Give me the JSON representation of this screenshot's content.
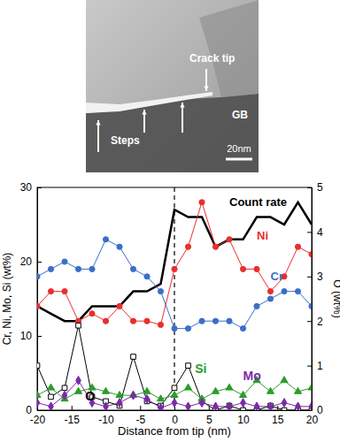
{
  "micrograph": {
    "labels": [
      "Crack tip",
      "GB",
      "Steps"
    ],
    "scale_bar": "20nm"
  },
  "chart_data": {
    "type": "line",
    "x_label": "Distance from tip (nm)",
    "y_label": "Cr, Ni, Mo, Si (wt%)",
    "y2_label": "O (wt%)",
    "x": [
      -20,
      -18,
      -16,
      -14,
      -12,
      -10,
      -8,
      -6,
      -4,
      -2,
      0,
      2,
      4,
      6,
      8,
      10,
      12,
      14,
      16,
      18,
      20
    ],
    "xlim": [
      -20,
      20
    ],
    "xticks": [
      -20,
      -15,
      -10,
      -5,
      0,
      5,
      10,
      15,
      20
    ],
    "ylim": [
      0,
      30
    ],
    "yticks": [
      0,
      10,
      20,
      30
    ],
    "y2lim": [
      0,
      5
    ],
    "y2ticks": [
      0,
      1,
      2,
      3,
      4,
      5
    ],
    "reference_lines": [
      {
        "x": 0,
        "line_style": "dashed"
      }
    ],
    "series": [
      {
        "name": "Count rate",
        "color": "#000000",
        "marker": "none",
        "line_style": "thick",
        "values": [
          14,
          13,
          12,
          12,
          14,
          14,
          14,
          16,
          16,
          17,
          27,
          26,
          26,
          22,
          23,
          23,
          26,
          26,
          25,
          28,
          25
        ]
      },
      {
        "name": "Ni",
        "color": "#e8302c",
        "marker": "circle",
        "line_style": "solid",
        "values": [
          14,
          16,
          16,
          12,
          13,
          12,
          14,
          12,
          12,
          11.5,
          19,
          22,
          28,
          22,
          23,
          19,
          19,
          16,
          18,
          22,
          21
        ]
      },
      {
        "name": "Cr",
        "color": "#3a6fc8",
        "marker": "circle",
        "line_style": "solid",
        "values": [
          18,
          19,
          20,
          19,
          19,
          23,
          22,
          19,
          18,
          16,
          11,
          11,
          12,
          12,
          12,
          11,
          14,
          15,
          16,
          16,
          14
        ]
      },
      {
        "name": "O",
        "color": "#000000",
        "marker": "open-square",
        "line_style": "solid",
        "axis": "y2",
        "values": [
          1.0,
          0.3,
          0.5,
          1.9,
          0.3,
          0.2,
          0.1,
          1.2,
          0.2,
          0.1,
          0.5,
          1.0,
          0.2,
          0,
          0.1,
          0,
          0,
          0.1,
          0,
          0,
          0
        ]
      },
      {
        "name": "Si",
        "color": "#2a9d2a",
        "marker": "triangle",
        "line_style": "solid",
        "values": [
          2,
          3,
          1.5,
          2.5,
          3,
          2.5,
          2,
          2,
          2.5,
          1.5,
          2,
          3,
          1.5,
          2.5,
          3,
          2,
          4,
          2.5,
          4,
          2.5,
          3
        ]
      },
      {
        "name": "Mo",
        "color": "#7a2aa8",
        "marker": "diamond",
        "line_style": "solid",
        "values": [
          1,
          0.5,
          2,
          4,
          1,
          0.5,
          1,
          2,
          1.5,
          0.3,
          1,
          0.5,
          1,
          0.5,
          0.5,
          1,
          0.5,
          0.5,
          1,
          0.5,
          0.5
        ]
      }
    ]
  }
}
